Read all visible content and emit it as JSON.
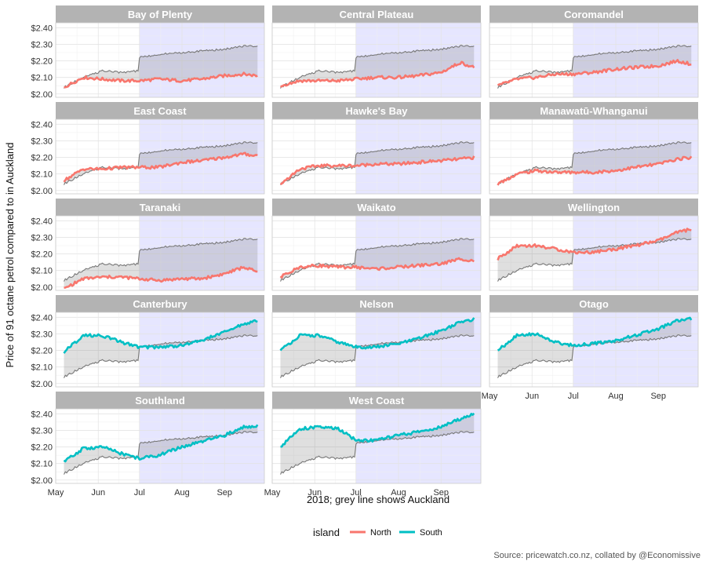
{
  "chart_data": {
    "type": "line",
    "xlabel": "2018; grey line shows Auckland",
    "ylabel": "Price of 91 octane petrol compared to in Auckland",
    "caption": "Source: pricewatch.co.nz, collated by @Economissive",
    "x_ticks": [
      "May",
      "Jun",
      "Jul",
      "Aug",
      "Sep"
    ],
    "y_ticks": [
      "$2.00",
      "$2.10",
      "$2.20",
      "$2.30",
      "$2.40"
    ],
    "ylim": [
      1.98,
      2.43
    ],
    "shaded_period": [
      "Jul",
      "end"
    ],
    "legend": {
      "title": "island",
      "position": "bottom",
      "entries": [
        {
          "label": "North",
          "color": "#F8766D"
        },
        {
          "label": "South",
          "color": "#00BFC4"
        }
      ]
    },
    "auckland_series": {
      "color": "#777777",
      "x": [
        "May 7",
        "May 21",
        "Jun 4",
        "Jun 18",
        "Jun 30",
        "Jul 1",
        "Jul 15",
        "Aug 1",
        "Aug 15",
        "Sep 1",
        "Sep 15",
        "Sep 25"
      ],
      "values": [
        2.04,
        2.1,
        2.14,
        2.13,
        2.14,
        2.22,
        2.24,
        2.25,
        2.26,
        2.27,
        2.29,
        2.29
      ]
    },
    "panels": [
      {
        "region": "Bay of Plenty",
        "island": "North",
        "x": [
          "May 7",
          "May 21",
          "Jun 4",
          "Jun 18",
          "Jul 1",
          "Jul 15",
          "Aug 1",
          "Aug 15",
          "Sep 1",
          "Sep 15",
          "Sep 25"
        ],
        "values": [
          2.04,
          2.1,
          2.09,
          2.08,
          2.08,
          2.09,
          2.08,
          2.09,
          2.11,
          2.12,
          2.11
        ]
      },
      {
        "region": "Central Plateau",
        "island": "North",
        "x": [
          "May 7",
          "May 21",
          "Jun 4",
          "Jun 18",
          "Jul 1",
          "Jul 15",
          "Aug 1",
          "Aug 15",
          "Sep 1",
          "Sep 15",
          "Sep 25"
        ],
        "values": [
          2.05,
          2.08,
          2.08,
          2.08,
          2.09,
          2.1,
          2.1,
          2.11,
          2.13,
          2.19,
          2.16
        ]
      },
      {
        "region": "Coromandel",
        "island": "North",
        "x": [
          "May 7",
          "May 21",
          "Jun 4",
          "Jun 18",
          "Jul 1",
          "Jul 15",
          "Aug 1",
          "Aug 15",
          "Sep 1",
          "Sep 15",
          "Sep 25"
        ],
        "values": [
          2.05,
          2.09,
          2.1,
          2.12,
          2.12,
          2.13,
          2.15,
          2.16,
          2.17,
          2.2,
          2.18
        ]
      },
      {
        "region": "East Coast",
        "island": "North",
        "x": [
          "May 7",
          "May 21",
          "Jun 4",
          "Jun 18",
          "Jul 1",
          "Jul 15",
          "Aug 1",
          "Aug 15",
          "Sep 1",
          "Sep 15",
          "Sep 25"
        ],
        "values": [
          2.06,
          2.13,
          2.13,
          2.14,
          2.14,
          2.14,
          2.17,
          2.18,
          2.2,
          2.22,
          2.21
        ]
      },
      {
        "region": "Hawke's Bay",
        "island": "North",
        "x": [
          "May 7",
          "May 21",
          "Jun 4",
          "Jun 18",
          "Jul 1",
          "Jul 15",
          "Aug 1",
          "Aug 15",
          "Sep 1",
          "Sep 15",
          "Sep 25"
        ],
        "values": [
          2.04,
          2.13,
          2.15,
          2.15,
          2.15,
          2.16,
          2.16,
          2.17,
          2.18,
          2.19,
          2.2
        ]
      },
      {
        "region": "Manawatū-Whanganui",
        "island": "North",
        "x": [
          "May 7",
          "May 21",
          "Jun 4",
          "Jun 18",
          "Jul 1",
          "Jul 15",
          "Aug 1",
          "Aug 15",
          "Sep 1",
          "Sep 15",
          "Sep 25"
        ],
        "values": [
          2.04,
          2.1,
          2.12,
          2.11,
          2.11,
          2.11,
          2.12,
          2.14,
          2.16,
          2.19,
          2.2
        ]
      },
      {
        "region": "Taranaki",
        "island": "North",
        "x": [
          "May 7",
          "May 21",
          "Jun 4",
          "Jun 18",
          "Jul 1",
          "Jul 15",
          "Aug 1",
          "Aug 15",
          "Sep 1",
          "Sep 15",
          "Sep 25"
        ],
        "values": [
          1.99,
          2.05,
          2.06,
          2.06,
          2.05,
          2.04,
          2.05,
          2.05,
          2.08,
          2.12,
          2.09
        ]
      },
      {
        "region": "Waikato",
        "island": "North",
        "x": [
          "May 7",
          "May 21",
          "Jun 4",
          "Jun 18",
          "Jul 1",
          "Jul 15",
          "Aug 1",
          "Aug 15",
          "Sep 1",
          "Sep 15",
          "Sep 25"
        ],
        "values": [
          2.06,
          2.12,
          2.13,
          2.12,
          2.12,
          2.11,
          2.12,
          2.13,
          2.14,
          2.17,
          2.16
        ]
      },
      {
        "region": "Wellington",
        "island": "North",
        "x": [
          "May 7",
          "May 21",
          "Jun 4",
          "Jun 18",
          "Jul 1",
          "Jul 15",
          "Aug 1",
          "Aug 15",
          "Sep 1",
          "Sep 15",
          "Sep 25"
        ],
        "values": [
          2.17,
          2.25,
          2.25,
          2.23,
          2.21,
          2.21,
          2.23,
          2.25,
          2.28,
          2.33,
          2.35
        ]
      },
      {
        "region": "Canterbury",
        "island": "South",
        "x": [
          "May 7",
          "May 21",
          "Jun 4",
          "Jun 18",
          "Jul 1",
          "Jul 15",
          "Aug 1",
          "Aug 15",
          "Sep 1",
          "Sep 15",
          "Sep 25"
        ],
        "values": [
          2.19,
          2.29,
          2.29,
          2.25,
          2.22,
          2.22,
          2.23,
          2.26,
          2.31,
          2.36,
          2.38
        ]
      },
      {
        "region": "Nelson",
        "island": "South",
        "x": [
          "May 7",
          "May 21",
          "Jun 4",
          "Jun 18",
          "Jul 1",
          "Jul 15",
          "Aug 1",
          "Aug 15",
          "Sep 1",
          "Sep 15",
          "Sep 25"
        ],
        "values": [
          2.2,
          2.29,
          2.29,
          2.25,
          2.22,
          2.22,
          2.24,
          2.27,
          2.32,
          2.37,
          2.39
        ]
      },
      {
        "region": "Otago",
        "island": "South",
        "x": [
          "May 7",
          "May 21",
          "Jun 4",
          "Jun 18",
          "Jul 1",
          "Jul 15",
          "Aug 1",
          "Aug 15",
          "Sep 1",
          "Sep 15",
          "Sep 25"
        ],
        "values": [
          2.2,
          2.29,
          2.3,
          2.25,
          2.23,
          2.24,
          2.26,
          2.29,
          2.33,
          2.38,
          2.39
        ]
      },
      {
        "region": "Southland",
        "island": "South",
        "x": [
          "May 7",
          "May 21",
          "Jun 4",
          "Jun 18",
          "Jul 1",
          "Jul 15",
          "Aug 1",
          "Aug 15",
          "Sep 1",
          "Sep 15",
          "Sep 25"
        ],
        "values": [
          2.11,
          2.19,
          2.2,
          2.16,
          2.13,
          2.15,
          2.2,
          2.23,
          2.27,
          2.32,
          2.33
        ]
      },
      {
        "region": "West Coast",
        "island": "South",
        "x": [
          "May 7",
          "May 21",
          "Jun 4",
          "Jun 18",
          "Jul 1",
          "Jul 15",
          "Aug 1",
          "Aug 15",
          "Sep 1",
          "Sep 15",
          "Sep 25"
        ],
        "values": [
          2.2,
          2.31,
          2.32,
          2.31,
          2.24,
          2.24,
          2.27,
          2.29,
          2.32,
          2.37,
          2.4
        ]
      }
    ]
  }
}
